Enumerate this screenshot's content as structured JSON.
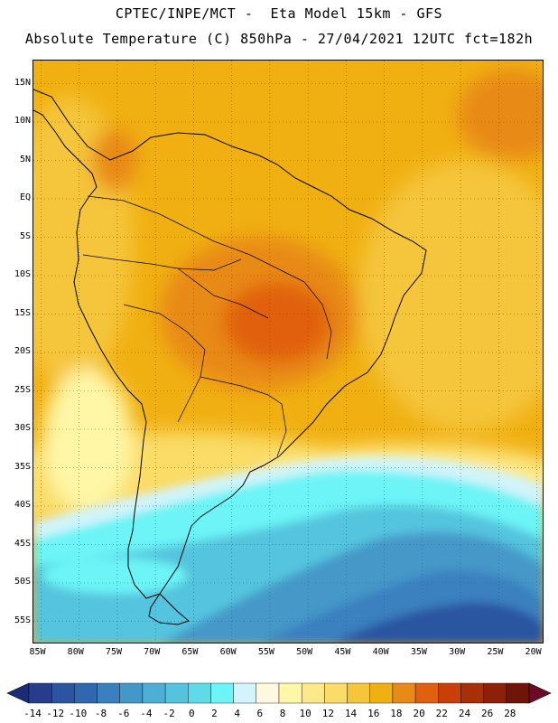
{
  "header": {
    "line1": "CPTEC/INPE/MCT -  Eta Model 15km - GFS",
    "line2": "Absolute Temperature (C) 850hPa - 27/04/2021 12UTC fct=182h"
  },
  "map": {
    "lon_range": [
      -86,
      -19
    ],
    "lat_range": [
      18,
      -58
    ],
    "lat_labels": [
      "15N",
      "10N",
      "5N",
      "EQ",
      "5S",
      "10S",
      "15S",
      "20S",
      "25S",
      "30S",
      "35S",
      "40S",
      "45S",
      "50S",
      "55S"
    ],
    "lon_labels": [
      "85W",
      "80W",
      "75W",
      "70W",
      "65W",
      "60W",
      "55W",
      "50W",
      "45W",
      "40W",
      "35W",
      "30W",
      "25W",
      "20W"
    ],
    "gridlines": true
  },
  "colorbar": {
    "labels": [
      "-14",
      "-12",
      "-10",
      "-8",
      "-6",
      "-4",
      "-2",
      "0",
      "2",
      "4",
      "6",
      "8",
      "10",
      "12",
      "14",
      "16",
      "18",
      "20",
      "22",
      "24",
      "26",
      "28"
    ],
    "colors": [
      "#283c8c",
      "#2b55a0",
      "#3068b0",
      "#3a80bf",
      "#4498c8",
      "#4dafd4",
      "#54c4de",
      "#5fdbe8",
      "#6cf4f6",
      "#d2f4fa",
      "#fff8e0",
      "#fff6a6",
      "#fde98a",
      "#fadc66",
      "#f5c53a",
      "#f0b012",
      "#e88a18",
      "#e06010",
      "#c84008",
      "#a83008",
      "#8c2008",
      "#6e1408"
    ],
    "left_arrow_color": "#1c2c74",
    "right_arrow_color": "#6e0a28"
  }
}
